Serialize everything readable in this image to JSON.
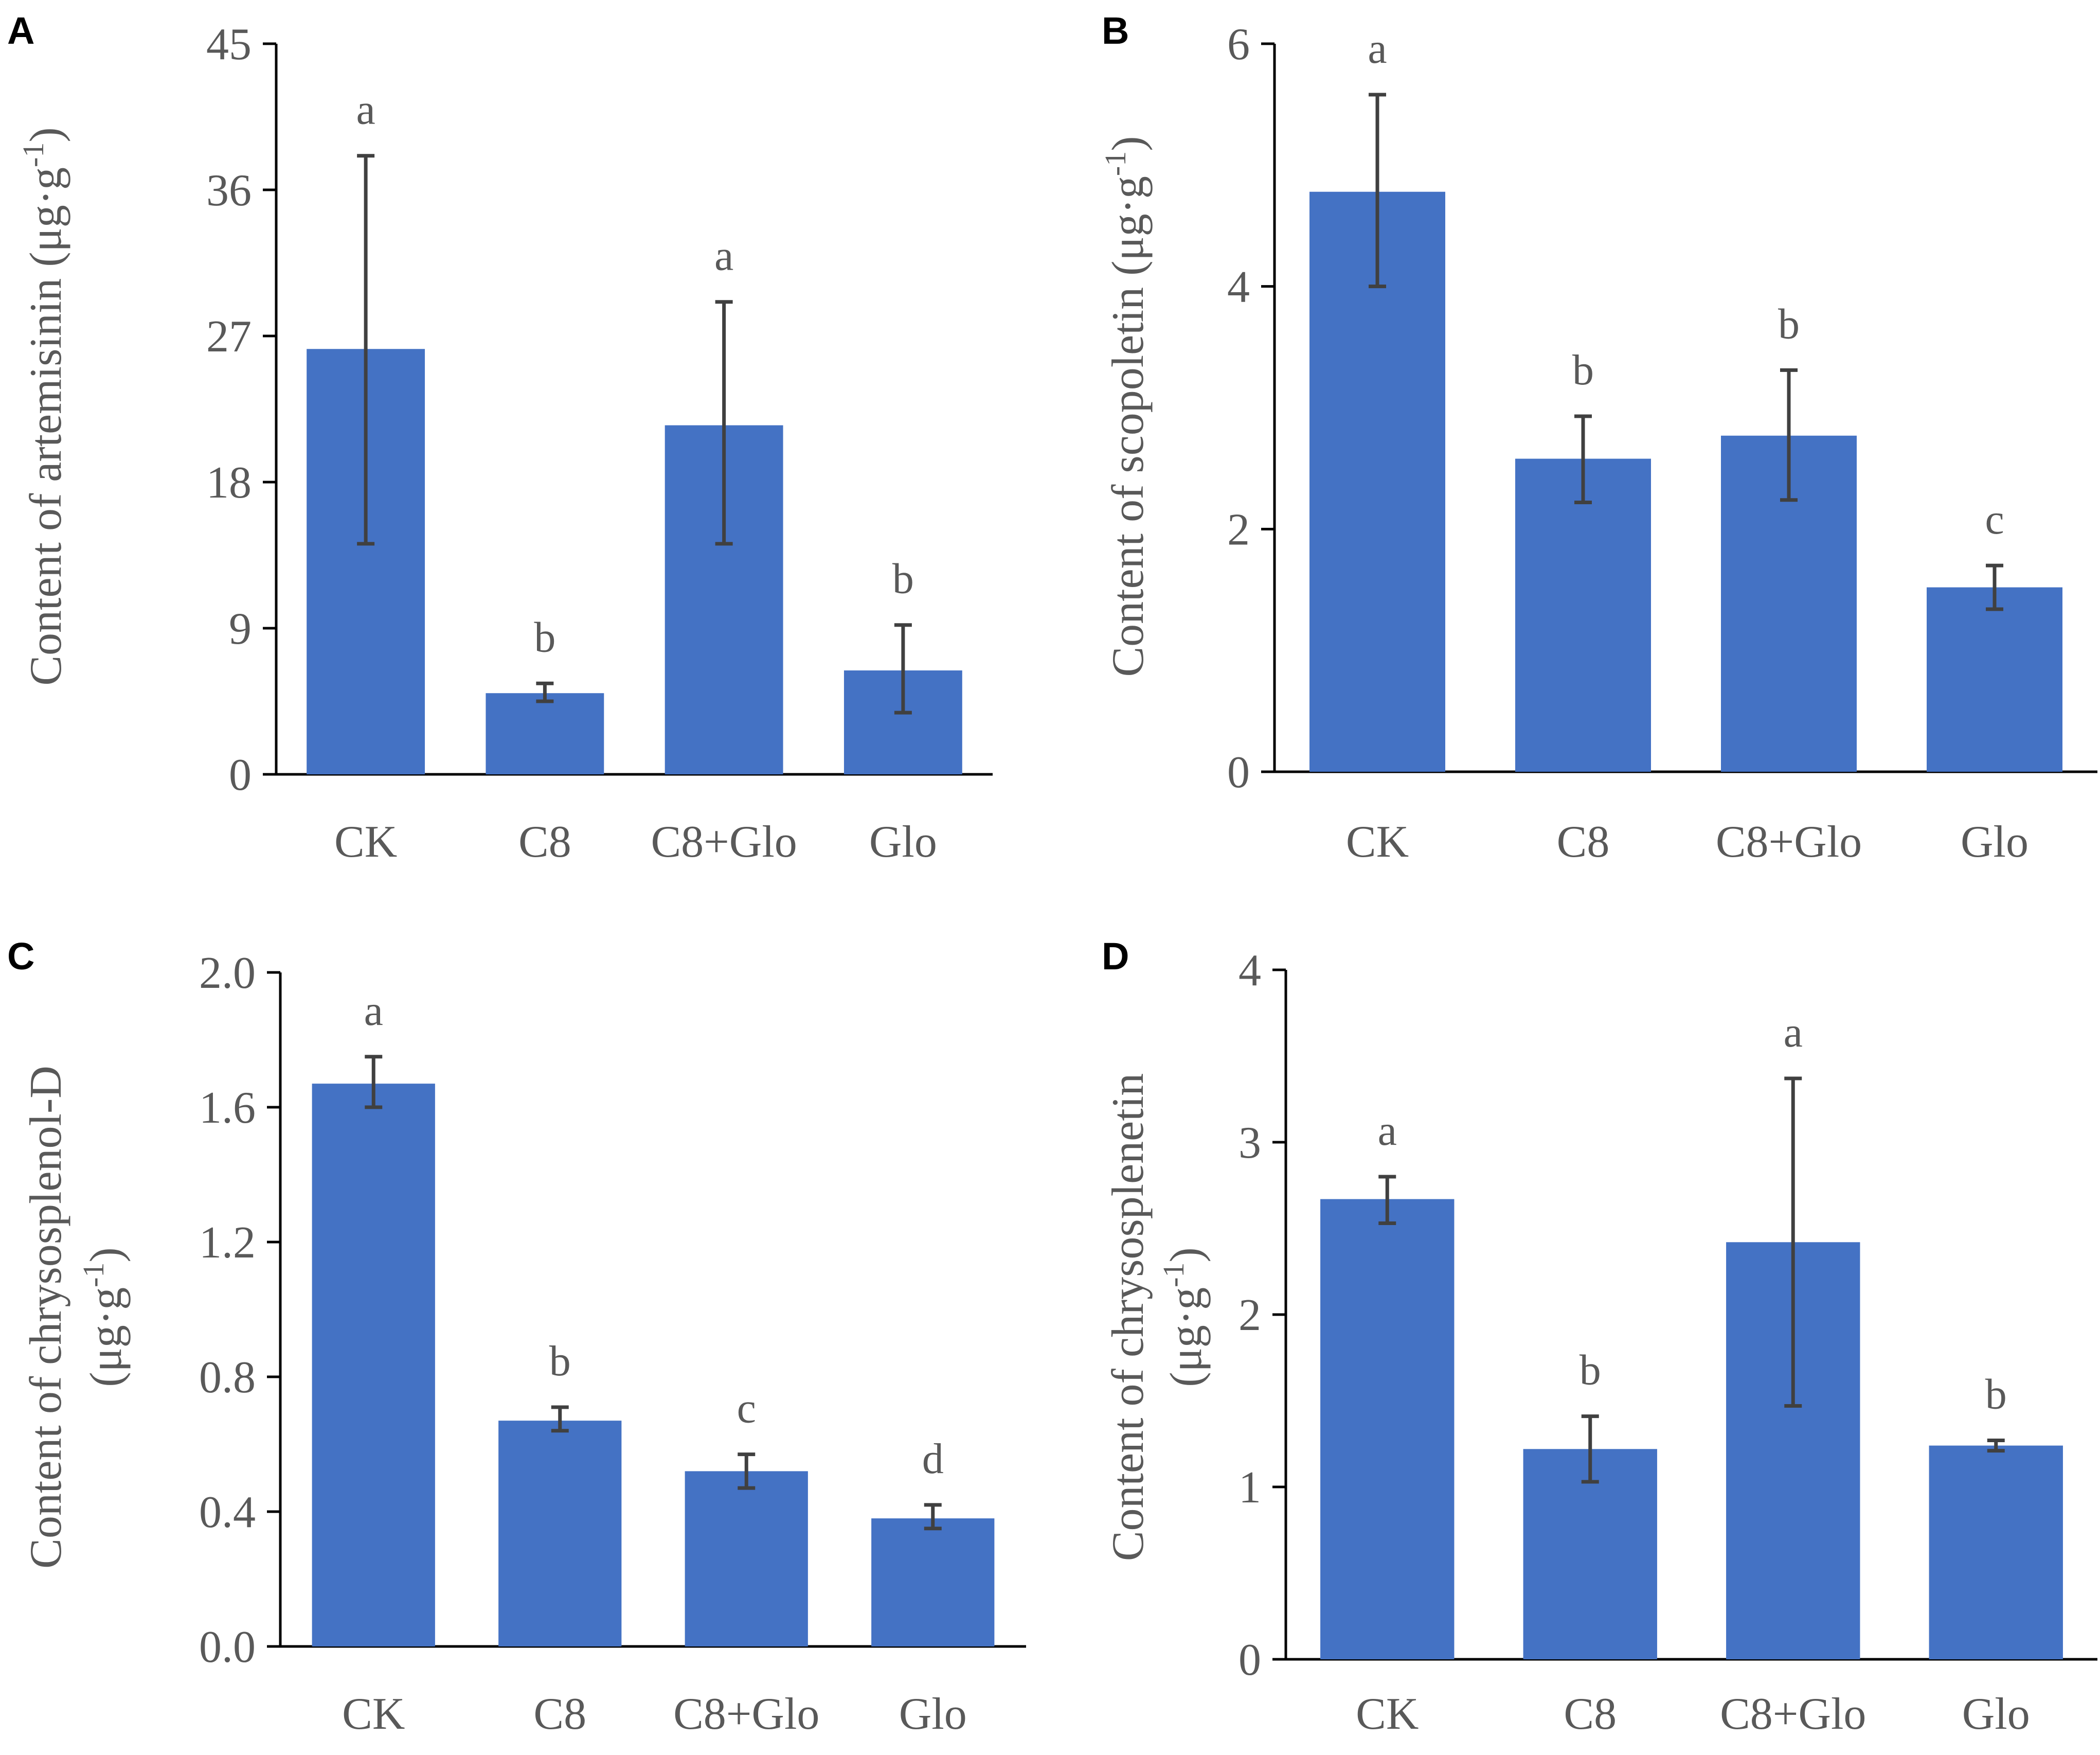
{
  "bar_color": "#4472C4",
  "error_color": "#404040",
  "chart_data": [
    {
      "panel": "A",
      "type": "bar",
      "categories": [
        "CK",
        "C8",
        "C8+Glo",
        "Glo"
      ],
      "values": [
        26.2,
        5.0,
        21.5,
        6.4
      ],
      "errors_upper": [
        38.1,
        5.6,
        29.1,
        9.2
      ],
      "errors_lower": [
        14.2,
        4.5,
        14.2,
        3.8
      ],
      "significance": [
        "a",
        "b",
        "a",
        "b"
      ],
      "ylabel": "Content of artemisinin (μg·g",
      "ylabel_sup": "-1",
      "ylabel_end": ")",
      "ylim": [
        0,
        45
      ],
      "yticks": [
        0,
        9,
        18,
        27,
        36,
        45
      ],
      "ytick_labels": [
        "0",
        "9",
        "18",
        "27",
        "36",
        "45"
      ]
    },
    {
      "panel": "B",
      "type": "bar",
      "categories": [
        "CK",
        "C8",
        "C8+Glo",
        "Glo"
      ],
      "values": [
        4.78,
        2.58,
        2.77,
        1.52
      ],
      "errors_upper": [
        5.58,
        2.93,
        3.31,
        1.7
      ],
      "errors_lower": [
        4.0,
        2.22,
        2.24,
        1.34
      ],
      "significance": [
        "a",
        "b",
        "b",
        "c"
      ],
      "ylabel": "Content of scopoletin (μg·g",
      "ylabel_sup": "-1",
      "ylabel_end": ")",
      "ylim": [
        0,
        6
      ],
      "yticks": [
        0,
        2,
        4,
        6
      ],
      "ytick_labels": [
        "0",
        "2",
        "4",
        "6"
      ]
    },
    {
      "panel": "C",
      "type": "bar",
      "categories": [
        "CK",
        "C8",
        "C8+Glo",
        "Glo"
      ],
      "values": [
        1.67,
        0.67,
        0.52,
        0.38
      ],
      "errors_upper": [
        1.75,
        0.71,
        0.57,
        0.42
      ],
      "errors_lower": [
        1.6,
        0.64,
        0.47,
        0.35
      ],
      "significance": [
        "a",
        "b",
        "c",
        "d"
      ],
      "ylabel": "Content of chrysosplenol-D",
      "ylabel_line2": "(μg·g",
      "ylabel_sup": "-1",
      "ylabel_end": ")",
      "ylim": [
        0,
        2.0
      ],
      "yticks": [
        0,
        0.4,
        0.8,
        1.2,
        1.6,
        2.0
      ],
      "ytick_labels": [
        "0.0",
        "0.4",
        "0.8",
        "1.2",
        "1.6",
        "2.0"
      ]
    },
    {
      "panel": "D",
      "type": "bar",
      "categories": [
        "CK",
        "C8",
        "C8+Glo",
        "Glo"
      ],
      "values": [
        2.67,
        1.22,
        2.42,
        1.24
      ],
      "errors_upper": [
        2.8,
        1.41,
        3.37,
        1.27
      ],
      "errors_lower": [
        2.53,
        1.03,
        1.47,
        1.21
      ],
      "significance": [
        "a",
        "b",
        "a",
        "b"
      ],
      "ylabel": "Content of chrysosplenetin",
      "ylabel_line2": "(μg·g",
      "ylabel_sup": "-1",
      "ylabel_end": ")",
      "ylim": [
        0,
        4
      ],
      "yticks": [
        0,
        1,
        2,
        3,
        4
      ],
      "ytick_labels": [
        "0",
        "1",
        "2",
        "3",
        "4"
      ]
    }
  ]
}
